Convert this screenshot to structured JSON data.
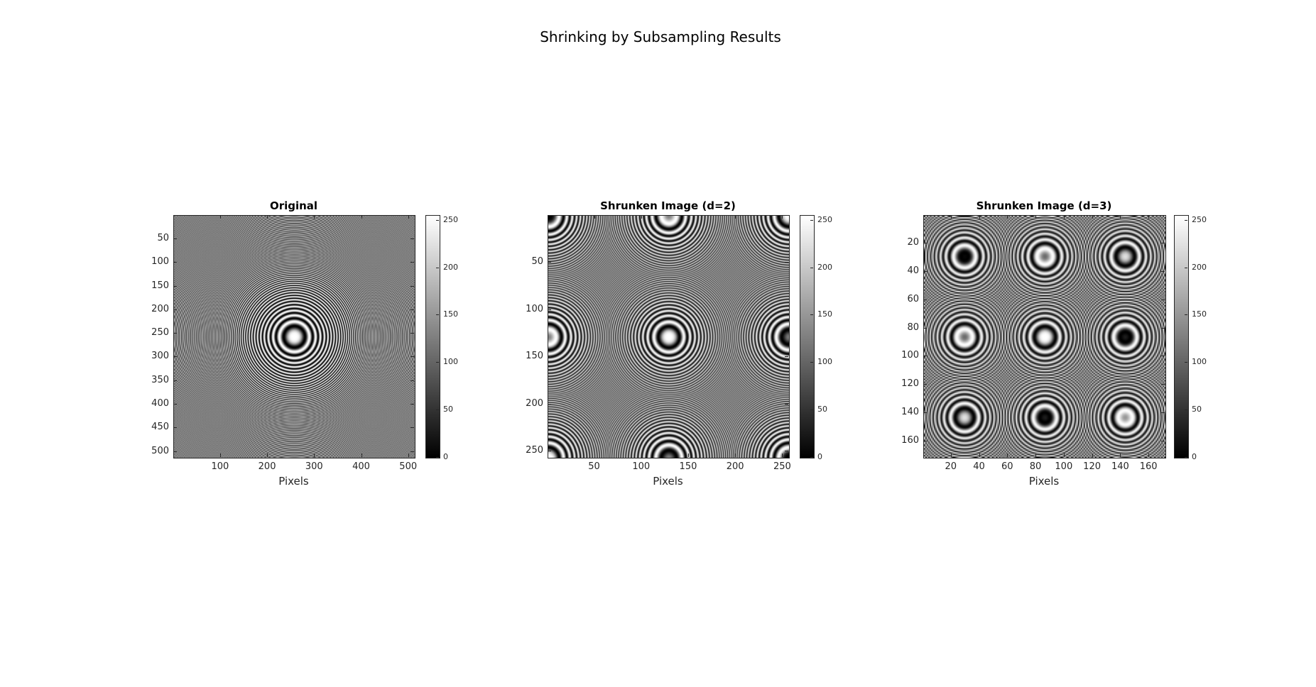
{
  "figure": {
    "title": "Shrinking by Subsampling Results"
  },
  "chart_data": [
    {
      "type": "heatmap",
      "title": "Original",
      "xlabel": "Pixels",
      "ylabel": "",
      "image_size": 512,
      "colormap": "gray",
      "clim": [
        0,
        255
      ],
      "xlim": [
        1,
        512
      ],
      "ylim": [
        1,
        512
      ],
      "xticks": [
        100,
        200,
        300,
        400,
        500
      ],
      "yticks": [
        50,
        100,
        150,
        200,
        250,
        300,
        350,
        400,
        450,
        500
      ],
      "colorbar_ticks": [
        0,
        50,
        100,
        150,
        200,
        250
      ]
    },
    {
      "type": "heatmap",
      "title": "Shrunken Image (d=2)",
      "xlabel": "Pixels",
      "ylabel": "",
      "image_size": 256,
      "subsample_factor": 2,
      "colormap": "gray",
      "clim": [
        0,
        255
      ],
      "xlim": [
        1,
        256
      ],
      "ylim": [
        1,
        256
      ],
      "xticks": [
        50,
        100,
        150,
        200,
        250
      ],
      "yticks": [
        50,
        100,
        150,
        200,
        250
      ],
      "colorbar_ticks": [
        0,
        50,
        100,
        150,
        200,
        250
      ]
    },
    {
      "type": "heatmap",
      "title": "Shrunken Image (d=3)",
      "xlabel": "Pixels",
      "ylabel": "",
      "image_size": 171,
      "subsample_factor": 3,
      "colormap": "gray",
      "clim": [
        0,
        255
      ],
      "xlim": [
        1,
        171
      ],
      "ylim": [
        1,
        171
      ],
      "xticks": [
        20,
        40,
        60,
        80,
        100,
        120,
        140,
        160
      ],
      "yticks": [
        20,
        40,
        60,
        80,
        100,
        120,
        140,
        160
      ],
      "colorbar_ticks": [
        0,
        50,
        100,
        150,
        200,
        250
      ]
    }
  ]
}
